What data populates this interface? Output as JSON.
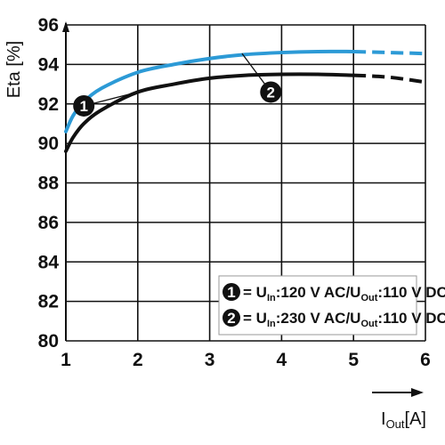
{
  "chart_data": {
    "type": "line",
    "ylabel": "Eta [%]",
    "xlabel": "I",
    "xlabel_sub": "Out",
    "xlabel_unit": "[A]",
    "xlim": [
      1,
      6
    ],
    "ylim": [
      80,
      96
    ],
    "x_ticks": [
      "1",
      "2",
      "3",
      "4",
      "5",
      "6"
    ],
    "y_ticks": [
      "80",
      "82",
      "84",
      "86",
      "88",
      "90",
      "92",
      "94",
      "96"
    ],
    "grid": true,
    "series": [
      {
        "name": "1",
        "color": "#111111",
        "x": [
          1.0,
          1.1,
          1.25,
          1.5,
          2.0,
          2.5,
          3.0,
          3.5,
          4.0,
          4.5,
          5.0
        ],
        "y": [
          89.6,
          90.3,
          91.0,
          91.7,
          92.6,
          93.0,
          93.3,
          93.45,
          93.5,
          93.5,
          93.45
        ],
        "dashed_x": [
          5.0,
          5.5,
          6.0
        ],
        "dashed_y": [
          93.45,
          93.35,
          93.1
        ],
        "marker_label": "1",
        "marker_at": [
          1.25,
          91.9
        ]
      },
      {
        "name": "2",
        "color": "#2c9ad6",
        "x": [
          1.0,
          1.1,
          1.25,
          1.5,
          2.0,
          2.5,
          3.0,
          3.5,
          4.0,
          4.5,
          5.0
        ],
        "y": [
          90.6,
          91.4,
          92.1,
          92.8,
          93.6,
          94.0,
          94.3,
          94.5,
          94.6,
          94.65,
          94.65
        ],
        "dashed_x": [
          5.0,
          5.5,
          6.0
        ],
        "dashed_y": [
          94.65,
          94.6,
          94.55
        ],
        "marker_label": "2",
        "marker_at": [
          3.85,
          92.6
        ]
      }
    ],
    "legend": {
      "placement": "bottom-right",
      "entries": [
        {
          "num": "1",
          "parts": [
            {
              "t": "= U",
              "sub": false
            },
            {
              "t": "In",
              "sub": true
            },
            {
              "t": ":120 V AC/U",
              "sub": false
            },
            {
              "t": "Out",
              "sub": true
            },
            {
              "t": ":110 V DC",
              "sub": false
            }
          ]
        },
        {
          "num": "2",
          "parts": [
            {
              "t": "= U",
              "sub": false
            },
            {
              "t": "In",
              "sub": true
            },
            {
              "t": ":230 V AC/U",
              "sub": false
            },
            {
              "t": "Out",
              "sub": true
            },
            {
              "t": ":110 V DC",
              "sub": false
            }
          ]
        }
      ]
    }
  }
}
